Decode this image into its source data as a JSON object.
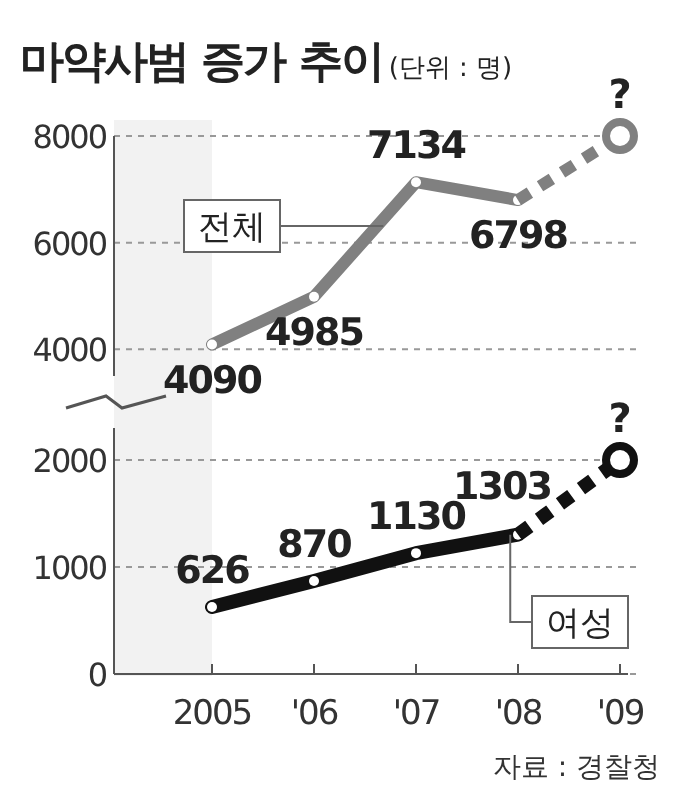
{
  "chart_data": [
    {
      "type": "line",
      "title": "마약사범 증가 추이",
      "subtitle": "(단위 : 명)",
      "categories": [
        "2005",
        "'06",
        "'07",
        "'08",
        "'09"
      ],
      "ylim": [
        3500,
        8000
      ],
      "yticks": [
        4000,
        6000,
        8000
      ],
      "grid": "y",
      "marker": "circle",
      "tick_labels": "y",
      "series": [
        {
          "name": "전체",
          "color": "#808080",
          "values": [
            4090,
            4985,
            7134,
            6798,
            null
          ],
          "value_labels": [
            "4090",
            "4985",
            "7134",
            "6798",
            null
          ],
          "line_style": "solid"
        },
        {
          "color": "#808080",
          "values": [
            null,
            null,
            null,
            6798,
            8000
          ],
          "line_style": "dashed"
        }
      ],
      "annotations": [
        {
          "text": "?",
          "x": "'09",
          "y": 8000
        }
      ]
    },
    {
      "type": "line",
      "categories": [
        "2005",
        "'06",
        "'07",
        "'08",
        "'09"
      ],
      "ylim": [
        0,
        2300
      ],
      "yticks": [
        0,
        1000,
        2000
      ],
      "grid": "y",
      "marker": "circle",
      "series": [
        {
          "name": "여성",
          "color": "#111111",
          "values": [
            626,
            870,
            1130,
            1303,
            null
          ],
          "value_labels": [
            "626",
            "870",
            "1130",
            "1303",
            null
          ],
          "line_style": "solid"
        },
        {
          "color": "#111111",
          "values": [
            null,
            null,
            null,
            1303,
            2000
          ],
          "line_style": "dashed"
        }
      ],
      "annotations": [
        {
          "text": "?",
          "x": "'09",
          "y": 2000
        },
        "자료 : 경찰청"
      ]
    }
  ]
}
